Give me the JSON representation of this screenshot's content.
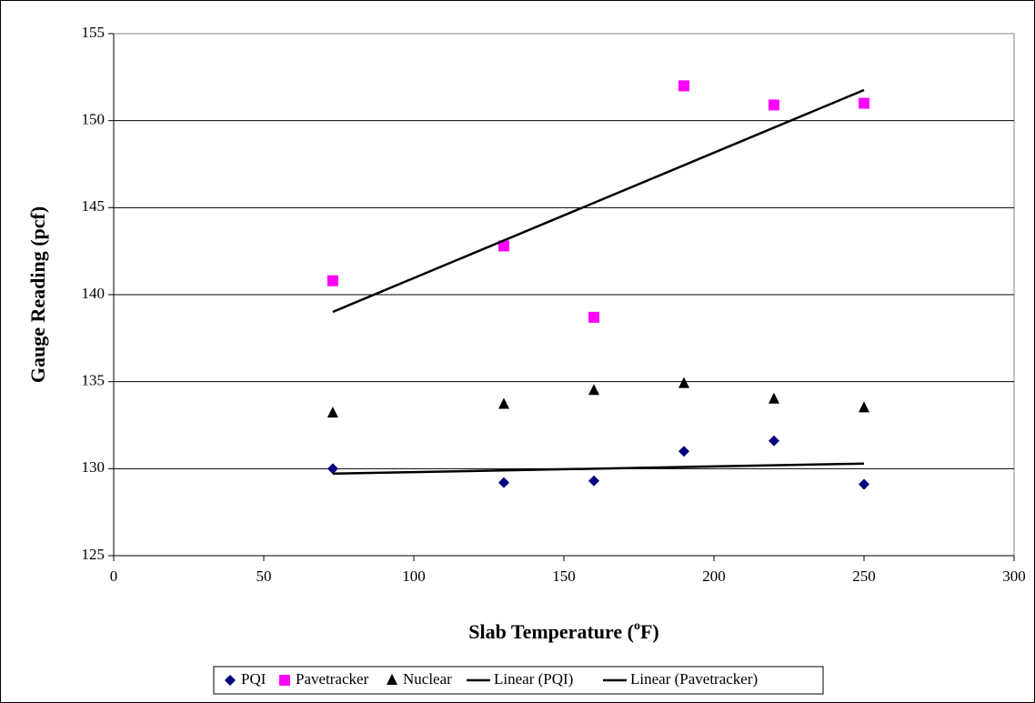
{
  "chart_data": {
    "type": "scatter",
    "x_label": [
      "Slab Temperature (",
      "o",
      "F)"
    ],
    "y_label": "Gauge Reading (pcf)",
    "series": [
      {
        "name": "PQI",
        "color": "#000080",
        "marker": "diamond",
        "x": [
          73,
          130,
          160,
          190,
          220,
          250
        ],
        "values": [
          130.0,
          129.2,
          129.3,
          131.0,
          131.6,
          129.1
        ]
      },
      {
        "name": "Pavetracker",
        "color": "#ff00ff",
        "marker": "square",
        "x": [
          73,
          130,
          160,
          190,
          220,
          250
        ],
        "values": [
          140.8,
          142.8,
          138.7,
          152.0,
          150.9,
          151.0
        ]
      },
      {
        "name": "Nuclear",
        "color": "#000000",
        "marker": "triangle",
        "x": [
          73,
          130,
          160,
          190,
          220,
          250
        ],
        "values": [
          133.2,
          133.7,
          134.5,
          134.9,
          134.0,
          133.5
        ]
      },
      {
        "name": "Linear (PQI)",
        "color": "#000000",
        "marker": "line",
        "trend": 0
      },
      {
        "name": "Linear (Pavetracker)",
        "color": "#000000",
        "marker": "line",
        "trend": 1
      }
    ],
    "xlim": [
      0,
      300
    ],
    "xticks": [
      0,
      50,
      100,
      150,
      200,
      250,
      300
    ],
    "ylim": [
      125,
      155
    ],
    "yticks": [
      125,
      130,
      135,
      140,
      145,
      150,
      155
    ],
    "grid": true,
    "legend": "bottom"
  }
}
